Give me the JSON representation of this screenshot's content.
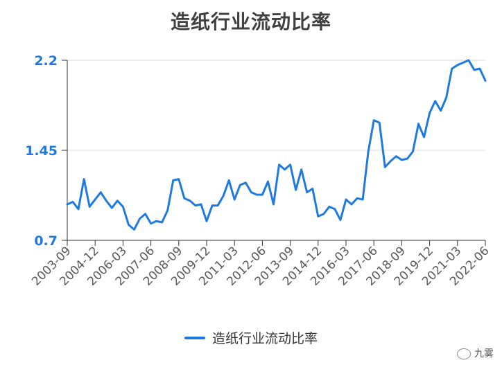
{
  "title": "造纸行业流动比率",
  "legend_label": "造纸行业流动比率",
  "watermark": "九雾",
  "colors": {
    "line": "#1f7ae0",
    "grid": "#d9d9d9",
    "axis": "#333333"
  },
  "chart_data": {
    "type": "line",
    "title": "造纸行业流动比率",
    "xlabel": "",
    "ylabel": "",
    "ylim": [
      0.7,
      2.2
    ],
    "yticks": [
      "0.7",
      "1.45",
      "2.2"
    ],
    "xtick_labels": [
      "2003-09",
      "2004-12",
      "2006-03",
      "2007-06",
      "2008-09",
      "2009-12",
      "2011-03",
      "2012-06",
      "2013-09",
      "2014-12",
      "2016-03",
      "2017-06",
      "2018-09",
      "2019-12",
      "2021-03",
      "2022-06"
    ],
    "legend_position": "bottom",
    "grid": true,
    "series": [
      {
        "name": "造纸行业流动比率",
        "x": [
          "2003-09",
          "2003-12",
          "2004-03",
          "2004-06",
          "2004-09",
          "2004-12",
          "2005-03",
          "2005-06",
          "2005-09",
          "2005-12",
          "2006-03",
          "2006-06",
          "2006-09",
          "2006-12",
          "2007-03",
          "2007-06",
          "2007-09",
          "2007-12",
          "2008-03",
          "2008-06",
          "2008-09",
          "2008-12",
          "2009-03",
          "2009-06",
          "2009-09",
          "2009-12",
          "2010-03",
          "2010-06",
          "2010-09",
          "2010-12",
          "2011-03",
          "2011-06",
          "2011-09",
          "2011-12",
          "2012-03",
          "2012-06",
          "2012-09",
          "2012-12",
          "2013-03",
          "2013-06",
          "2013-09",
          "2013-12",
          "2014-03",
          "2014-06",
          "2014-09",
          "2014-12",
          "2015-03",
          "2015-06",
          "2015-09",
          "2015-12",
          "2016-03",
          "2016-06",
          "2016-09",
          "2016-12",
          "2017-03",
          "2017-06",
          "2017-09",
          "2017-12",
          "2018-03",
          "2018-06",
          "2018-09",
          "2018-12",
          "2019-03",
          "2019-06",
          "2019-09",
          "2019-12",
          "2020-03",
          "2020-06",
          "2020-09",
          "2020-12",
          "2021-03",
          "2021-06",
          "2021-09",
          "2021-12",
          "2022-03",
          "2022-06"
        ],
        "values": [
          1.0,
          1.02,
          0.96,
          1.21,
          0.98,
          1.04,
          1.1,
          1.03,
          0.97,
          1.03,
          0.98,
          0.83,
          0.79,
          0.88,
          0.92,
          0.84,
          0.86,
          0.85,
          0.95,
          1.2,
          1.21,
          1.05,
          1.03,
          0.99,
          1.0,
          0.86,
          0.99,
          0.99,
          1.07,
          1.2,
          1.04,
          1.16,
          1.18,
          1.1,
          1.08,
          1.08,
          1.19,
          1.0,
          1.33,
          1.29,
          1.33,
          1.12,
          1.29,
          1.1,
          1.13,
          0.9,
          0.92,
          0.98,
          0.96,
          0.87,
          1.04,
          1.0,
          1.05,
          1.04,
          1.44,
          1.7,
          1.68,
          1.31,
          1.36,
          1.4,
          1.37,
          1.38,
          1.44,
          1.67,
          1.56,
          1.76,
          1.86,
          1.78,
          1.89,
          2.13,
          2.16,
          2.18,
          2.2,
          2.12,
          2.13,
          2.03
        ]
      }
    ]
  }
}
